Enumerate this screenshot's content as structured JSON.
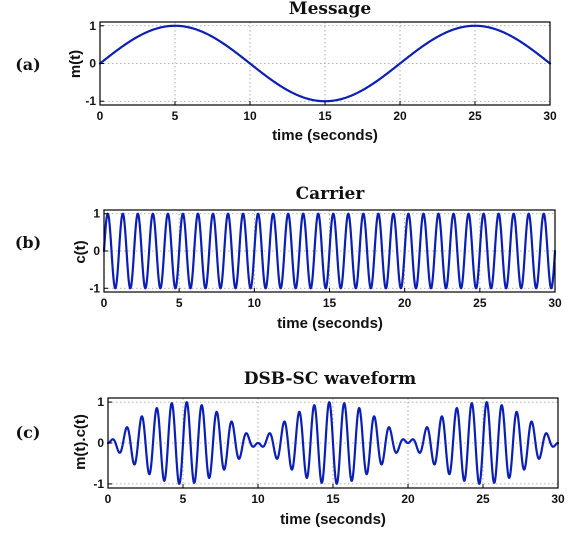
{
  "colors": {
    "series": "#0b1fb4",
    "grid": "#9a9a9a",
    "axis": "#000000"
  },
  "chart_data": [
    {
      "type": "line",
      "panel_label": "(a)",
      "title": "Message",
      "xlabel": "time (seconds)",
      "ylabel": "m(t)",
      "xlim": [
        0,
        30
      ],
      "ylim": [
        -1.1,
        1.1
      ],
      "xticks": [
        0,
        5,
        10,
        15,
        20,
        25,
        30
      ],
      "yticks": [
        -1,
        0,
        1
      ],
      "grid": true,
      "series": [
        {
          "function": "m(t) = sin(2*pi*t/20)",
          "period_seconds": 20,
          "amplitude": 1
        }
      ]
    },
    {
      "type": "line",
      "panel_label": "(b)",
      "title": "Carrier",
      "xlabel": "time (seconds)",
      "ylabel": "c(t)",
      "xlim": [
        0,
        30
      ],
      "ylim": [
        -1.1,
        1.1
      ],
      "xticks": [
        0,
        5,
        10,
        15,
        20,
        25,
        30
      ],
      "yticks": [
        -1,
        0,
        1
      ],
      "grid": true,
      "series": [
        {
          "function": "c(t) = sin(2*pi*t)",
          "period_seconds": 1,
          "amplitude": 1
        }
      ]
    },
    {
      "type": "line",
      "panel_label": "(c)",
      "title": "DSB-SC waveform",
      "xlabel": "time (seconds)",
      "ylabel": "m(t).c(t)",
      "xlim": [
        0,
        30
      ],
      "ylim": [
        -1.1,
        1.1
      ],
      "xticks": [
        0,
        5,
        10,
        15,
        20,
        25,
        30
      ],
      "yticks": [
        -1,
        0,
        1
      ],
      "grid": true,
      "series": [
        {
          "function": "m(t)*c(t) = sin(2*pi*t/20)*sin(2*pi*t)",
          "amplitude": 1
        }
      ]
    }
  ]
}
